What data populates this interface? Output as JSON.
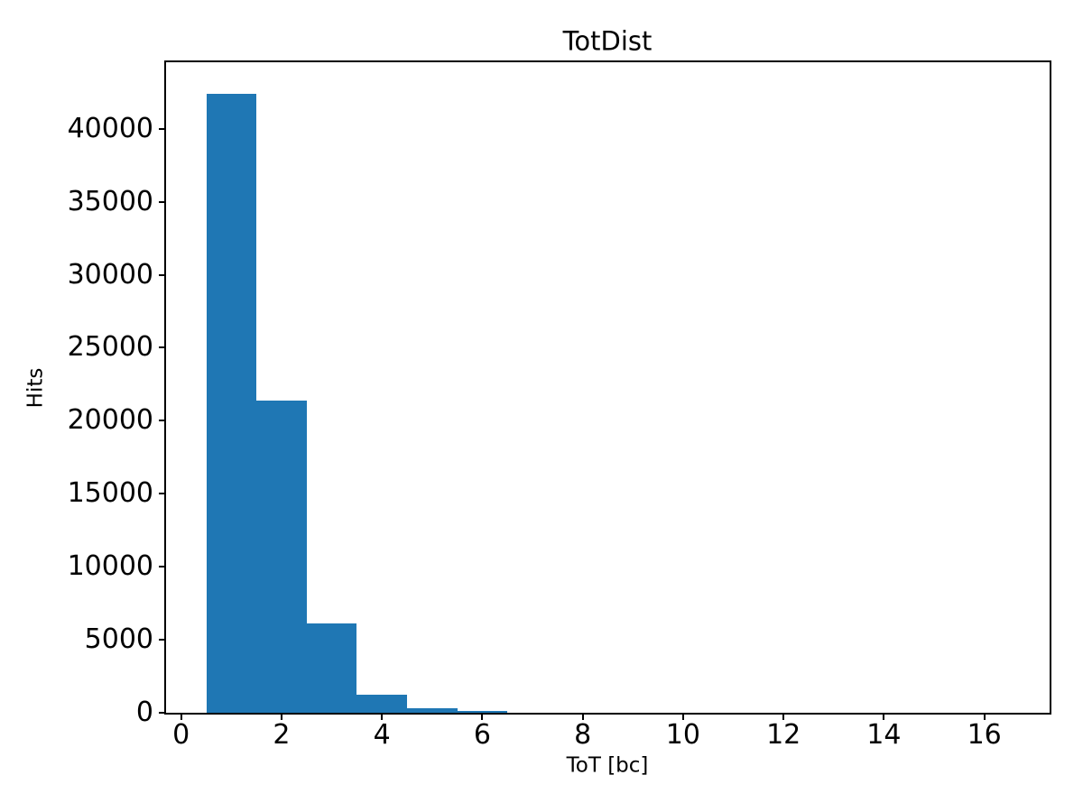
{
  "chart_data": {
    "type": "bar",
    "subtype": "histogram",
    "title": "TotDist",
    "xlabel": "ToT [bc]",
    "ylabel": "Hits",
    "bar_color": "#1f77b4",
    "background_color": "#ffffff",
    "axis_color": "#000000",
    "grid": false,
    "legend": null,
    "xlim": [
      -0.3,
      17.3
    ],
    "ylim": [
      0,
      44550
    ],
    "xticks": [
      0,
      2,
      4,
      6,
      8,
      10,
      12,
      14,
      16
    ],
    "yticks": [
      0,
      5000,
      10000,
      15000,
      20000,
      25000,
      30000,
      35000,
      40000
    ],
    "bin_edges": [
      0.5,
      1.5,
      2.5,
      3.5,
      4.5,
      5.5,
      6.5,
      7.5,
      8.5,
      9.5,
      10.5,
      11.5,
      12.5,
      13.5,
      14.5,
      15.5,
      16.5
    ],
    "counts": [
      42400,
      21400,
      6150,
      1230,
      330,
      110,
      0,
      0,
      0,
      0,
      0,
      0,
      0,
      0,
      0,
      0
    ]
  }
}
